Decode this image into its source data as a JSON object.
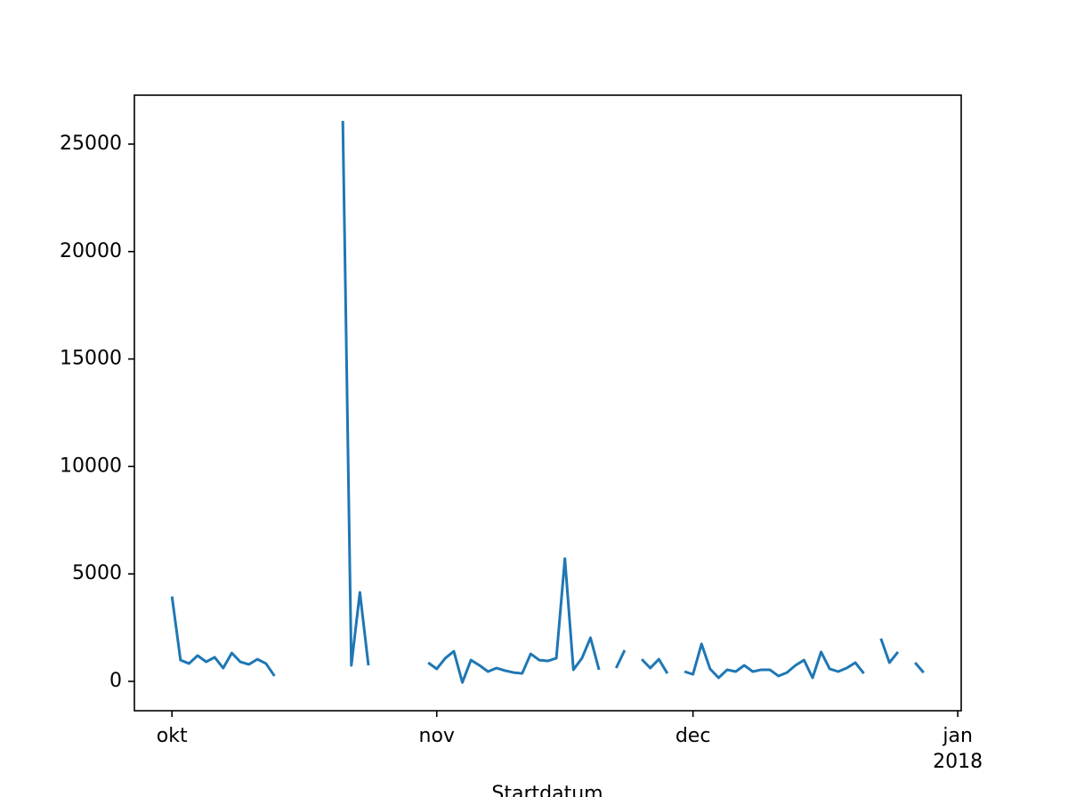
{
  "chart_data": {
    "type": "line",
    "x_label": "Startdatum",
    "x": [
      0,
      1,
      2,
      3,
      4,
      5,
      6,
      7,
      8,
      9,
      10,
      11,
      12,
      13,
      14,
      15,
      16,
      17,
      18,
      19,
      20,
      21,
      22,
      23,
      24,
      25,
      26,
      27,
      28,
      29,
      30,
      31,
      32,
      33,
      34,
      35,
      36,
      37,
      38,
      39,
      40,
      41,
      42,
      43,
      44,
      45,
      46,
      47,
      48,
      49,
      50,
      51,
      52,
      53,
      54,
      55,
      56,
      57,
      58,
      59,
      60,
      61,
      62,
      63,
      64,
      65,
      66,
      67,
      68,
      69,
      70,
      71,
      72,
      73,
      74,
      75,
      76,
      77,
      78,
      79,
      80,
      81,
      82,
      83,
      84,
      85,
      86,
      87,
      88
    ],
    "values": [
      3950,
      990,
      830,
      1200,
      910,
      1120,
      620,
      1320,
      910,
      790,
      1030,
      830,
      250,
      null,
      null,
      null,
      null,
      null,
      null,
      null,
      26080,
      745,
      4140,
      745,
      null,
      null,
      null,
      null,
      null,
      null,
      870,
      580,
      1080,
      1400,
      -50,
      990,
      745,
      455,
      620,
      500,
      410,
      370,
      1280,
      990,
      950,
      1080,
      5710,
      540,
      1080,
      2030,
      540,
      null,
      620,
      1450,
      null,
      1030,
      620,
      1030,
      370,
      null,
      455,
      330,
      1740,
      580,
      165,
      540,
      455,
      745,
      455,
      540,
      540,
      250,
      410,
      745,
      990,
      165,
      1370,
      580,
      455,
      620,
      870,
      370,
      null,
      1990,
      870,
      1370,
      null,
      870,
      410
    ],
    "color": "#1f77b4",
    "xlim": [
      -4.4,
      92.4
    ],
    "xticks": [
      {
        "value": 0,
        "label": "okt"
      },
      {
        "value": 31,
        "label": "nov"
      },
      {
        "value": 61,
        "label": "dec"
      },
      {
        "value": 92,
        "label": "jan\n2018"
      }
    ],
    "ylim": [
      -1366,
      27276
    ],
    "yticks": [
      0,
      5000,
      10000,
      15000,
      20000,
      25000
    ]
  }
}
